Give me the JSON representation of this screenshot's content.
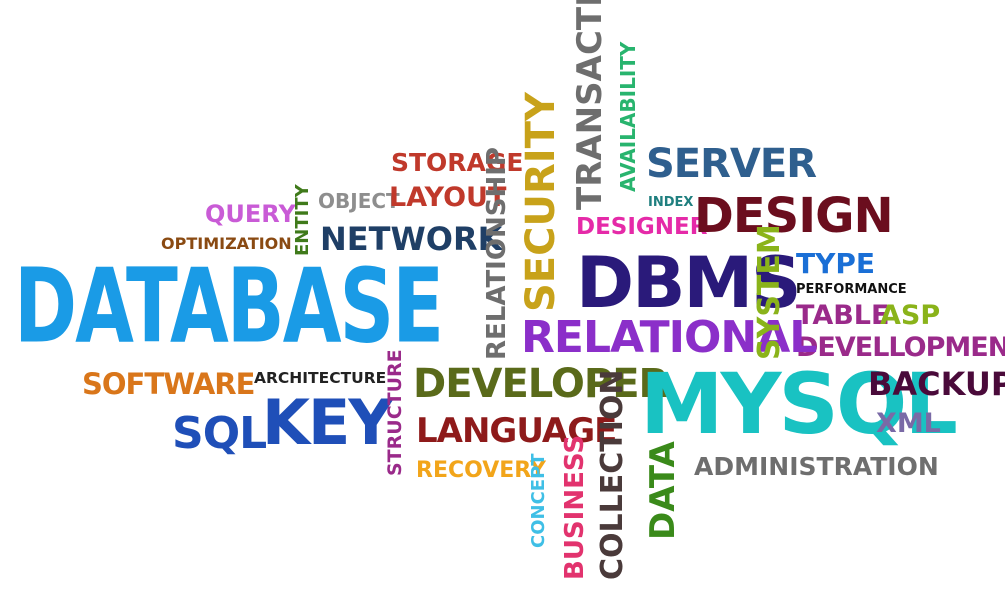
{
  "words": {
    "database": {
      "text": "DATABASE",
      "color": "#1a9be6"
    },
    "sql": {
      "text": "SQL",
      "color": "#1f4fb8"
    },
    "key": {
      "text": "KEY",
      "color": "#1f4fb8"
    },
    "software": {
      "text": "SOFTWARE",
      "color": "#d9761a"
    },
    "architecture": {
      "text": "ARCHITECTURE",
      "color": "#222222"
    },
    "query": {
      "text": "QUERY",
      "color": "#c95bd6"
    },
    "optimization": {
      "text": "OPTIMIZATION",
      "color": "#8a4a12"
    },
    "entity": {
      "text": "ENTITY",
      "color": "#3f7a1a"
    },
    "object": {
      "text": "OBJECT",
      "color": "#8e8e8e"
    },
    "layout": {
      "text": "LAYOUT",
      "color": "#c0392b"
    },
    "storage": {
      "text": "STORAGE",
      "color": "#c0392b"
    },
    "network": {
      "text": "NETWORK",
      "color": "#1f3f66"
    },
    "relationship": {
      "text": "RELATIONSHIP",
      "color": "#6e6e6e"
    },
    "security": {
      "text": "SECURITY",
      "color": "#c8a21a"
    },
    "transaction": {
      "text": "TRANSACTION",
      "color": "#6e6e6e"
    },
    "availability": {
      "text": "AVAILABILITY",
      "color": "#28b46e"
    },
    "designer": {
      "text": "DESIGNER",
      "color": "#e52aa8"
    },
    "index": {
      "text": "INDEX",
      "color": "#1f7f7f"
    },
    "server": {
      "text": "SERVER",
      "color": "#2f5f8e"
    },
    "design": {
      "text": "DESIGN",
      "color": "#6b0e1e"
    },
    "dbms": {
      "text": "DBMS",
      "color": "#2a1a7a"
    },
    "system": {
      "text": "SYSTEM",
      "color": "#8ab31a"
    },
    "type": {
      "text": "TYPE",
      "color": "#1a6fd6"
    },
    "performance": {
      "text": "PERFORMANCE",
      "color": "#111111"
    },
    "table": {
      "text": "TABLE",
      "color": "#9a2a8a"
    },
    "asp": {
      "text": "ASP",
      "color": "#8ab31a"
    },
    "develloppment": {
      "text": "DEVELLOPMENT",
      "color": "#9a2a8a"
    },
    "relational": {
      "text": "RELATIONAL",
      "color": "#8b2fc9"
    },
    "developer": {
      "text": "DEVELOPER",
      "color": "#5a6a1a"
    },
    "structure": {
      "text": "STRUCTURE",
      "color": "#9a2a8a"
    },
    "language": {
      "text": "LANGUAGE",
      "color": "#8e1a1a"
    },
    "recovery": {
      "text": "RECOVERY",
      "color": "#f2a51a"
    },
    "concept": {
      "text": "CONCEPT",
      "color": "#3fbfe6"
    },
    "business": {
      "text": "BUSINESS",
      "color": "#e2336e"
    },
    "collection": {
      "text": "COLLECTION",
      "color": "#4a3a3a"
    },
    "data": {
      "text": "DATA",
      "color": "#3a8a1a"
    },
    "mysql": {
      "text": "MYSQL",
      "color": "#19c2c2"
    },
    "backup": {
      "text": "BACKUP",
      "color": "#4a0a3a"
    },
    "xml": {
      "text": "XML",
      "color": "#7a6aa6"
    },
    "administration": {
      "text": "ADMINISTRATION",
      "color": "#6e6e6e"
    }
  }
}
